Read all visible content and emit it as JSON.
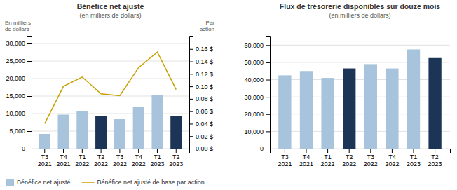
{
  "chart_data": [
    {
      "type": "bar",
      "title": "Bénéfice net ajusté",
      "subtitle": "(en milliers de dollars)",
      "categories": [
        "T3\n2021",
        "T4\n2021",
        "T1\n2022",
        "T2\n2022",
        "T3\n2022",
        "T4\n2022",
        "T1\n2023",
        "T2\n2023"
      ],
      "series": [
        {
          "name": "Bénéfice net ajusté",
          "type": "bar",
          "colors": [
            "#a8c4dc",
            "#a8c4dc",
            "#a8c4dc",
            "#1c3557",
            "#a8c4dc",
            "#a8c4dc",
            "#a8c4dc",
            "#1c3557"
          ],
          "values": [
            4200,
            9700,
            10800,
            9200,
            8400,
            12000,
            15400,
            9300
          ]
        },
        {
          "name": "Bénéfice net ajusté de base par action",
          "type": "line",
          "color": "#c8a000",
          "axis": "y2",
          "values": [
            0.04,
            0.1,
            0.115,
            0.088,
            0.085,
            0.13,
            0.155,
            0.095
          ]
        }
      ],
      "ylabel": "En milliers\nde dollars",
      "y2label": "Par\naction",
      "ylim": [
        0,
        32000
      ],
      "yticks": [
        0,
        {
          "value": 5000,
          "label": "5,000"
        },
        {
          "value": 10000,
          "label": "10,000"
        },
        {
          "value": 15000,
          "label": "15,000"
        },
        {
          "value": 20000,
          "label": "20,000"
        },
        {
          "value": 25000,
          "label": "25,000"
        },
        {
          "value": 30000,
          "label": "30,000"
        }
      ],
      "y2lim": [
        0.0,
        0.18
      ],
      "y2ticks": [
        {
          "value": 0.0,
          "label": "0.00 $"
        },
        {
          "value": 0.02,
          "label": "0.02 $"
        },
        {
          "value": 0.04,
          "label": "0.04 $"
        },
        {
          "value": 0.06,
          "label": "0.06 $"
        },
        {
          "value": 0.08,
          "label": "0.08 $"
        },
        {
          "value": 0.1,
          "label": "0.10 $"
        },
        {
          "value": 0.12,
          "label": "0.12 $"
        },
        {
          "value": 0.14,
          "label": "0.14 $"
        },
        {
          "value": 0.16,
          "label": "0.16 $"
        }
      ],
      "grid": true,
      "legend": "lower left"
    },
    {
      "type": "bar",
      "title": "Flux de trésorerie disponibles sur douze mois",
      "subtitle": "(en milliers de dollars)",
      "categories": [
        "T3\n2021",
        "T4\n2021",
        "T1\n2022",
        "T2\n2022",
        "T3\n2022",
        "T4\n2022",
        "T1\n2023",
        "T2\n2023"
      ],
      "values": [
        42500,
        45000,
        41000,
        46500,
        49000,
        46500,
        57500,
        52500
      ],
      "colors": [
        "#a8c4dc",
        "#a8c4dc",
        "#a8c4dc",
        "#1c3557",
        "#a8c4dc",
        "#a8c4dc",
        "#a8c4dc",
        "#1c3557"
      ],
      "ylim": [
        0,
        65000
      ],
      "yticks": [
        0,
        {
          "value": 10000,
          "label": "10,000"
        },
        {
          "value": 20000,
          "label": "20,000"
        },
        {
          "value": 30000,
          "label": "30,000"
        },
        {
          "value": 40000,
          "label": "40,000"
        },
        {
          "value": 50000,
          "label": "50,000"
        },
        {
          "value": 60000,
          "label": "60,000"
        }
      ],
      "grid": true
    }
  ]
}
